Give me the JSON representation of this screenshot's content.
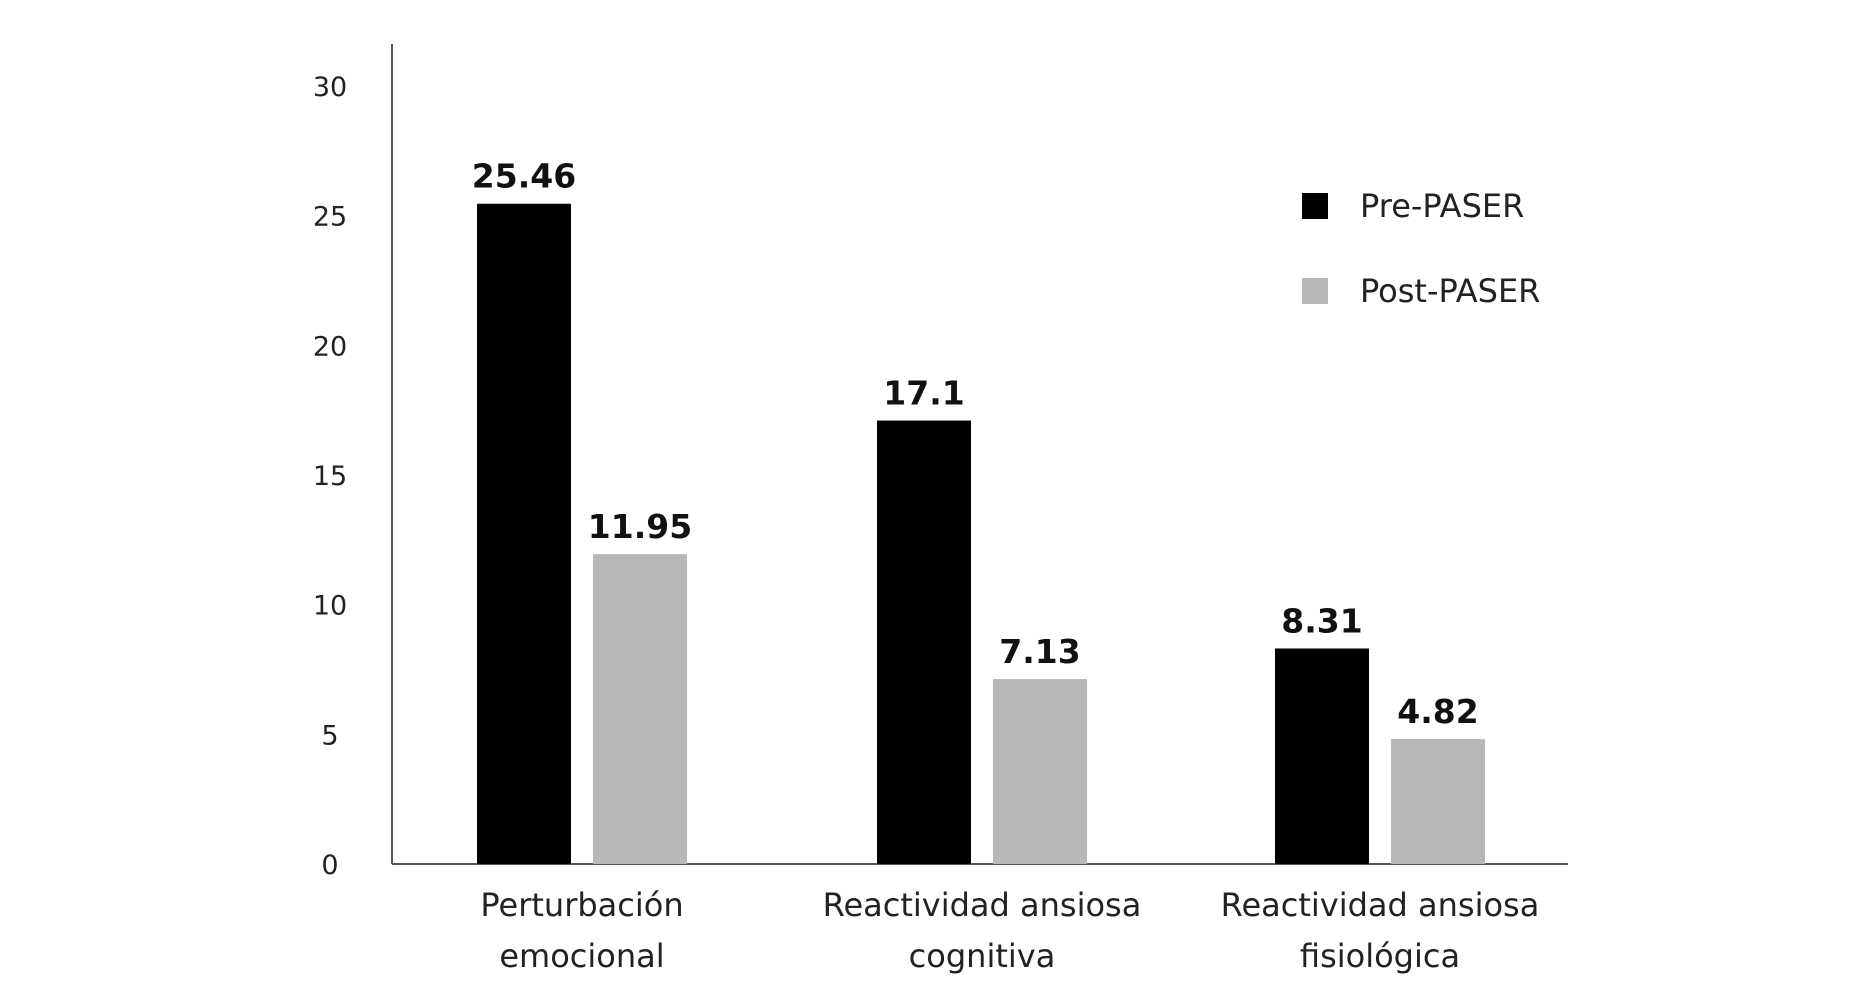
{
  "chart_data": {
    "type": "bar",
    "categories": [
      [
        "Perturbación",
        "emocional"
      ],
      [
        "Reactividad ansiosa",
        "cognitiva"
      ],
      [
        "Reactividad ansiosa",
        "fisiológica"
      ]
    ],
    "series": [
      {
        "name": "Pre-PASER",
        "color": "#000000",
        "values": [
          25.46,
          17.1,
          8.31
        ],
        "labels": [
          "25.46",
          "17.1",
          "8.31"
        ]
      },
      {
        "name": "Post-PASER",
        "color": "#b8b8b8",
        "values": [
          11.95,
          7.13,
          4.82
        ],
        "labels": [
          "11.95",
          "7.13",
          "4.82"
        ]
      }
    ],
    "ylim": [
      0,
      30
    ],
    "yticks": [
      0,
      5,
      10,
      15,
      20,
      25,
      30
    ],
    "grid": false,
    "legend_position": "top-right"
  }
}
